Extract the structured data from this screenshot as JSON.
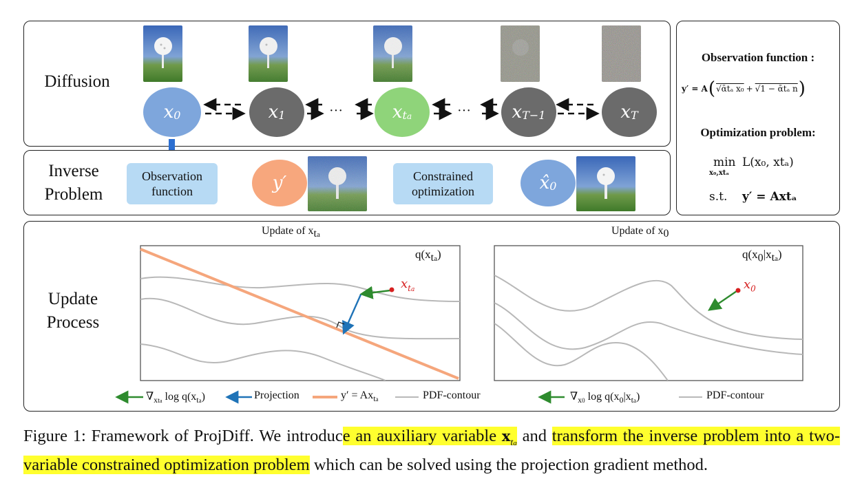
{
  "diffusion": {
    "label": "Diffusion",
    "nodes": [
      {
        "sym": "x",
        "sub": "0",
        "color": "#7ea6dc"
      },
      {
        "sym": "x",
        "sub": "1",
        "color": "#6b6b6b"
      },
      {
        "sym": "x",
        "sub": "t",
        "sub2": "a",
        "color": "#8fd47a"
      },
      {
        "sym": "x",
        "sub": "T−1",
        "color": "#6b6b6b"
      },
      {
        "sym": "x",
        "sub": "T",
        "color": "#6b6b6b"
      }
    ],
    "ellipsis": "···"
  },
  "inverse": {
    "label_line1": "Inverse",
    "label_line2": "Problem",
    "box1": {
      "line1": "Observation",
      "line2": "function"
    },
    "y_node": {
      "sym": "y′",
      "color": "#f7a77d"
    },
    "box2": {
      "line1": "Constrained",
      "line2": "optimization"
    },
    "xhat_node": {
      "sym": "x̂",
      "sub": "0",
      "color": "#7ea6dc"
    }
  },
  "formulas": {
    "obs_title": "Observation function :",
    "obs_expr_lhs": "y′ = A",
    "obs_term1": "√ᾱtₐ x₀",
    "obs_plus": "+",
    "obs_term2": "√1 − ᾱtₐ n",
    "opt_title": "Optimization problem:",
    "min_word": "min",
    "min_under": "x₀,xtₐ",
    "objective": "L(x₀, xtₐ)",
    "st": "s.t.",
    "constraint": "y′ = Axtₐ"
  },
  "update": {
    "label_line1": "Update",
    "label_line2": "Process",
    "left_title": "Update of x",
    "left_title_sub": "t",
    "left_title_sub2": "a",
    "right_title": "Update of x",
    "right_title_sub": "0",
    "left_q": "q(x",
    "left_q_sub": "t",
    "left_q_sub2": "a",
    "left_q_end": ")",
    "right_q": "q(x",
    "right_q_sub": "0",
    "right_q_mid": "|x",
    "right_q_sub2": "t",
    "right_q_sub3": "a",
    "right_q_end": ")",
    "left_point": "x",
    "left_point_sub": "t",
    "left_point_sub2": "a",
    "right_point": "x",
    "right_point_sub": "0",
    "colors": {
      "contour": "#b8b8b8",
      "constraint": "#f5a67c",
      "gradient": "#2e8b2e",
      "projection": "#1f73b7",
      "point": "#d62020"
    }
  },
  "legend": {
    "left": {
      "grad_text": "∇",
      "grad_sub": "x",
      "grad_sub2": "t",
      "grad_sub3": "a",
      "grad_tail": " log q(x",
      "grad_tail_sub": "t",
      "grad_tail_sub2": "a",
      "grad_end": ")",
      "projection": "Projection",
      "line_text": "y′ = Ax",
      "line_sub": "t",
      "line_sub2": "a",
      "contour": "PDF-contour"
    },
    "right": {
      "grad_text": "∇",
      "grad_sub": "x",
      "grad_sub2": "0",
      "grad_tail": " log q(x",
      "grad_tail_sub": "0",
      "grad_tail_mid": "|x",
      "grad_tail_sub2": "t",
      "grad_tail_sub3": "a",
      "grad_end": ")",
      "contour": "PDF-contour"
    }
  },
  "caption": {
    "part1": "Figure 1: Framework of ProjDiff. We introduc",
    "hl1": "e an auxiliary variable ",
    "hl1_var": "x",
    "hl1_sub": "t",
    "hl1_sub2": "a",
    "part2": " and ",
    "hl2": "transform the inverse problem into a two-variable constrained optimization problem",
    "part3": " which can be solved using the projection gradient method."
  }
}
